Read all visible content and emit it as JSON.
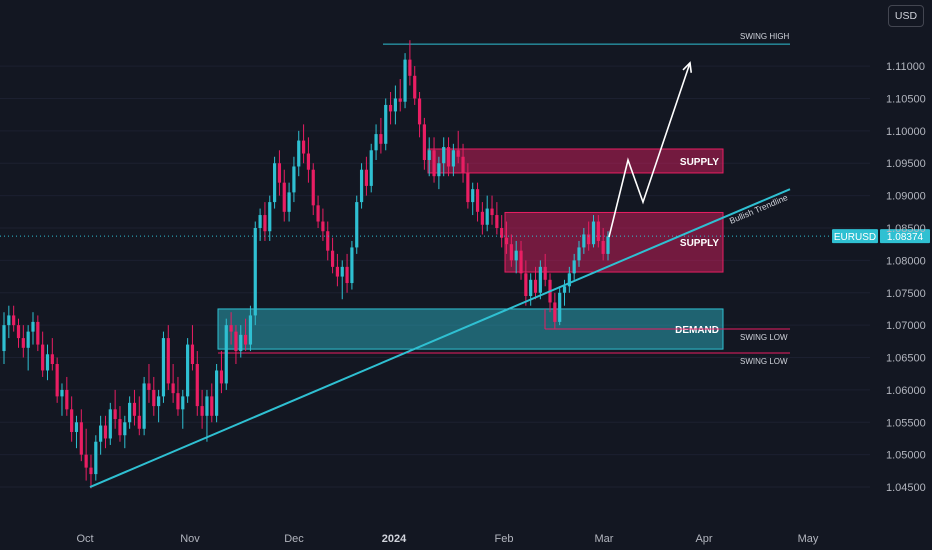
{
  "currency": "USD",
  "chart_data": {
    "type": "candlestick",
    "symbol": "EURUSD",
    "last_price": "1.08374",
    "colors": {
      "up": "#2fc0d2",
      "down": "#e91e63",
      "trendline": "#2fc0d2",
      "supply": "#e91e63",
      "demand": "#2fc0d2"
    },
    "y_axis": {
      "min": 1.043,
      "max": 1.1165,
      "ticks": [
        "1.11000",
        "1.10500",
        "1.10000",
        "1.09500",
        "1.09000",
        "1.08500",
        "1.08000",
        "1.07500",
        "1.07000",
        "1.06500",
        "1.06000",
        "1.05500",
        "1.05000",
        "1.04500"
      ]
    },
    "x_axis": {
      "ticks": [
        {
          "label": "Oct",
          "bold": false
        },
        {
          "label": "Nov",
          "bold": false
        },
        {
          "label": "Dec",
          "bold": false
        },
        {
          "label": "2024",
          "bold": true
        },
        {
          "label": "Feb",
          "bold": false
        },
        {
          "label": "Mar",
          "bold": false
        },
        {
          "label": "Apr",
          "bold": false
        },
        {
          "label": "May",
          "bold": false
        }
      ]
    },
    "zones": [
      {
        "label": "SUPPLY",
        "kind": "supply",
        "top": 1.0972,
        "bottom": 1.0935
      },
      {
        "label": "SUPPLY",
        "kind": "supply",
        "top": 1.0874,
        "bottom": 1.0782
      },
      {
        "label": "DEMAND",
        "kind": "demand",
        "top": 1.0725,
        "bottom": 1.0663
      }
    ],
    "levels": [
      {
        "label": "SWING HIGH",
        "value": 1.1134
      },
      {
        "label": "SWING LOW",
        "value": 1.0694
      },
      {
        "label": "SWING LOW",
        "value": 1.0657
      }
    ],
    "trendline": {
      "label": "Bullish Trendline",
      "from": {
        "date": "2023-10-03",
        "price": 1.045
      },
      "to": {
        "date": "2024-05-05",
        "price": 1.091
      }
    },
    "projection": [
      1.0836,
      1.0955,
      1.089,
      1.1105
    ],
    "candles": [
      [
        1.066,
        1.072,
        1.064,
        1.07
      ],
      [
        1.07,
        1.073,
        1.068,
        1.0715
      ],
      [
        1.0715,
        1.073,
        1.069,
        1.07
      ],
      [
        1.07,
        1.071,
        1.0665,
        1.068
      ],
      [
        1.068,
        1.07,
        1.065,
        1.0665
      ],
      [
        1.0665,
        1.07,
        1.063,
        1.069
      ],
      [
        1.069,
        1.072,
        1.067,
        1.0705
      ],
      [
        1.0705,
        1.0715,
        1.066,
        1.067
      ],
      [
        1.067,
        1.069,
        1.062,
        1.063
      ],
      [
        1.063,
        1.067,
        1.0615,
        1.0655
      ],
      [
        1.0655,
        1.068,
        1.063,
        1.064
      ],
      [
        1.064,
        1.065,
        1.058,
        1.059
      ],
      [
        1.059,
        1.061,
        1.056,
        1.06
      ],
      [
        1.06,
        1.062,
        1.056,
        1.057
      ],
      [
        1.057,
        1.059,
        1.052,
        1.0535
      ],
      [
        1.0535,
        1.056,
        1.051,
        1.055
      ],
      [
        1.055,
        1.057,
        1.049,
        1.05
      ],
      [
        1.05,
        1.054,
        1.046,
        1.048
      ],
      [
        1.048,
        1.05,
        1.0448,
        1.047
      ],
      [
        1.047,
        1.053,
        1.046,
        1.052
      ],
      [
        1.052,
        1.056,
        1.05,
        1.0545
      ],
      [
        1.0545,
        1.056,
        1.051,
        1.0525
      ],
      [
        1.0525,
        1.058,
        1.0515,
        1.057
      ],
      [
        1.057,
        1.06,
        1.054,
        1.0555
      ],
      [
        1.0555,
        1.0575,
        1.052,
        1.053
      ],
      [
        1.053,
        1.056,
        1.051,
        1.055
      ],
      [
        1.055,
        1.059,
        1.054,
        1.058
      ],
      [
        1.058,
        1.06,
        1.0545,
        1.056
      ],
      [
        1.056,
        1.059,
        1.053,
        1.054
      ],
      [
        1.054,
        1.062,
        1.053,
        1.061
      ],
      [
        1.061,
        1.064,
        1.058,
        1.06
      ],
      [
        1.06,
        1.062,
        1.056,
        1.0575
      ],
      [
        1.0575,
        1.06,
        1.055,
        1.059
      ],
      [
        1.059,
        1.069,
        1.058,
        1.068
      ],
      [
        1.068,
        1.07,
        1.06,
        1.061
      ],
      [
        1.061,
        1.064,
        1.058,
        1.0595
      ],
      [
        1.0595,
        1.062,
        1.056,
        1.057
      ],
      [
        1.057,
        1.06,
        1.054,
        1.059
      ],
      [
        1.059,
        1.068,
        1.058,
        1.067
      ],
      [
        1.067,
        1.07,
        1.063,
        1.064
      ],
      [
        1.064,
        1.066,
        1.056,
        1.0575
      ],
      [
        1.0575,
        1.06,
        1.054,
        1.056
      ],
      [
        1.056,
        1.06,
        1.052,
        1.059
      ],
      [
        1.059,
        1.061,
        1.055,
        1.056
      ],
      [
        1.056,
        1.064,
        1.055,
        1.063
      ],
      [
        1.063,
        1.066,
        1.0595,
        1.061
      ],
      [
        1.061,
        1.071,
        1.06,
        1.07
      ],
      [
        1.07,
        1.072,
        1.067,
        1.069
      ],
      [
        1.069,
        1.07,
        1.064,
        1.066
      ],
      [
        1.066,
        1.07,
        1.065,
        1.0685
      ],
      [
        1.0685,
        1.071,
        1.066,
        1.067
      ],
      [
        1.067,
        1.073,
        1.066,
        1.0715
      ],
      [
        1.0715,
        1.086,
        1.07,
        1.085
      ],
      [
        1.085,
        1.088,
        1.083,
        1.087
      ],
      [
        1.087,
        1.089,
        1.083,
        1.0845
      ],
      [
        1.0845,
        1.09,
        1.083,
        1.089
      ],
      [
        1.089,
        1.096,
        1.088,
        1.095
      ],
      [
        1.095,
        1.097,
        1.09,
        1.092
      ],
      [
        1.092,
        1.094,
        1.086,
        1.0875
      ],
      [
        1.0875,
        1.092,
        1.086,
        1.0905
      ],
      [
        1.0905,
        1.096,
        1.089,
        1.0945
      ],
      [
        1.0945,
        1.1,
        1.093,
        1.0985
      ],
      [
        1.0985,
        1.101,
        1.095,
        1.0965
      ],
      [
        1.0965,
        1.099,
        1.092,
        1.094
      ],
      [
        1.094,
        1.095,
        1.087,
        1.0885
      ],
      [
        1.0885,
        1.09,
        1.085,
        1.086
      ],
      [
        1.086,
        1.088,
        1.083,
        1.0845
      ],
      [
        1.0845,
        1.086,
        1.08,
        1.0815
      ],
      [
        1.0815,
        1.0835,
        1.078,
        1.079
      ],
      [
        1.079,
        1.081,
        1.076,
        1.0775
      ],
      [
        1.0775,
        1.08,
        1.074,
        1.079
      ],
      [
        1.079,
        1.081,
        1.075,
        1.0765
      ],
      [
        1.0765,
        1.083,
        1.0755,
        1.082
      ],
      [
        1.082,
        1.09,
        1.081,
        1.089
      ],
      [
        1.089,
        1.095,
        1.088,
        1.094
      ],
      [
        1.094,
        1.096,
        1.09,
        1.0915
      ],
      [
        1.0915,
        1.098,
        1.0905,
        1.097
      ],
      [
        1.097,
        1.101,
        1.0955,
        1.0995
      ],
      [
        1.0995,
        1.102,
        1.0965,
        1.098
      ],
      [
        1.098,
        1.105,
        1.097,
        1.104
      ],
      [
        1.104,
        1.106,
        1.101,
        1.103
      ],
      [
        1.103,
        1.107,
        1.101,
        1.105
      ],
      [
        1.105,
        1.108,
        1.103,
        1.1045
      ],
      [
        1.1045,
        1.112,
        1.1035,
        1.111
      ],
      [
        1.111,
        1.114,
        1.107,
        1.1085
      ],
      [
        1.1085,
        1.11,
        1.104,
        1.105
      ],
      [
        1.105,
        1.106,
        1.099,
        1.101
      ],
      [
        1.101,
        1.102,
        1.094,
        1.0955
      ],
      [
        1.0955,
        1.099,
        1.093,
        1.097
      ],
      [
        1.097,
        1.099,
        1.092,
        1.093
      ],
      [
        1.093,
        1.096,
        1.091,
        1.095
      ],
      [
        1.095,
        1.099,
        1.093,
        1.0975
      ],
      [
        1.0975,
        1.099,
        1.093,
        1.0945
      ],
      [
        1.0945,
        1.098,
        1.093,
        1.097
      ],
      [
        1.097,
        1.1,
        1.095,
        1.096
      ],
      [
        1.096,
        1.098,
        1.092,
        1.0935
      ],
      [
        1.0935,
        1.095,
        1.088,
        1.089
      ],
      [
        1.089,
        1.092,
        1.087,
        1.091
      ],
      [
        1.091,
        1.092,
        1.086,
        1.0875
      ],
      [
        1.0875,
        1.089,
        1.084,
        1.0855
      ],
      [
        1.0855,
        1.09,
        1.0845,
        1.088
      ],
      [
        1.088,
        1.09,
        1.0855,
        1.087
      ],
      [
        1.087,
        1.089,
        1.084,
        1.085
      ],
      [
        1.085,
        1.087,
        1.082,
        1.0835
      ],
      [
        1.0835,
        1.086,
        1.081,
        1.0825
      ],
      [
        1.0825,
        1.084,
        1.079,
        1.08
      ],
      [
        1.08,
        1.083,
        1.078,
        1.0815
      ],
      [
        1.0815,
        1.083,
        1.077,
        1.078
      ],
      [
        1.078,
        1.08,
        1.073,
        1.0745
      ],
      [
        1.0745,
        1.078,
        1.073,
        1.077
      ],
      [
        1.077,
        1.079,
        1.074,
        1.075
      ],
      [
        1.075,
        1.08,
        1.074,
        1.079
      ],
      [
        1.079,
        1.081,
        1.076,
        1.077
      ],
      [
        1.077,
        1.078,
        1.072,
        1.0735
      ],
      [
        1.0735,
        1.075,
        1.0695,
        1.0705
      ],
      [
        1.0705,
        1.076,
        1.07,
        1.075
      ],
      [
        1.075,
        1.077,
        1.073,
        1.076
      ],
      [
        1.076,
        1.079,
        1.075,
        1.078
      ],
      [
        1.078,
        1.081,
        1.077,
        1.08
      ],
      [
        1.08,
        1.083,
        1.079,
        1.082
      ],
      [
        1.082,
        1.085,
        1.081,
        1.084
      ],
      [
        1.084,
        1.086,
        1.0815,
        1.0825
      ],
      [
        1.0825,
        1.087,
        1.082,
        1.086
      ],
      [
        1.086,
        1.087,
        1.082,
        1.083
      ],
      [
        1.083,
        1.085,
        1.08,
        1.081
      ],
      [
        1.081,
        1.0845,
        1.08,
        1.0837
      ]
    ]
  }
}
